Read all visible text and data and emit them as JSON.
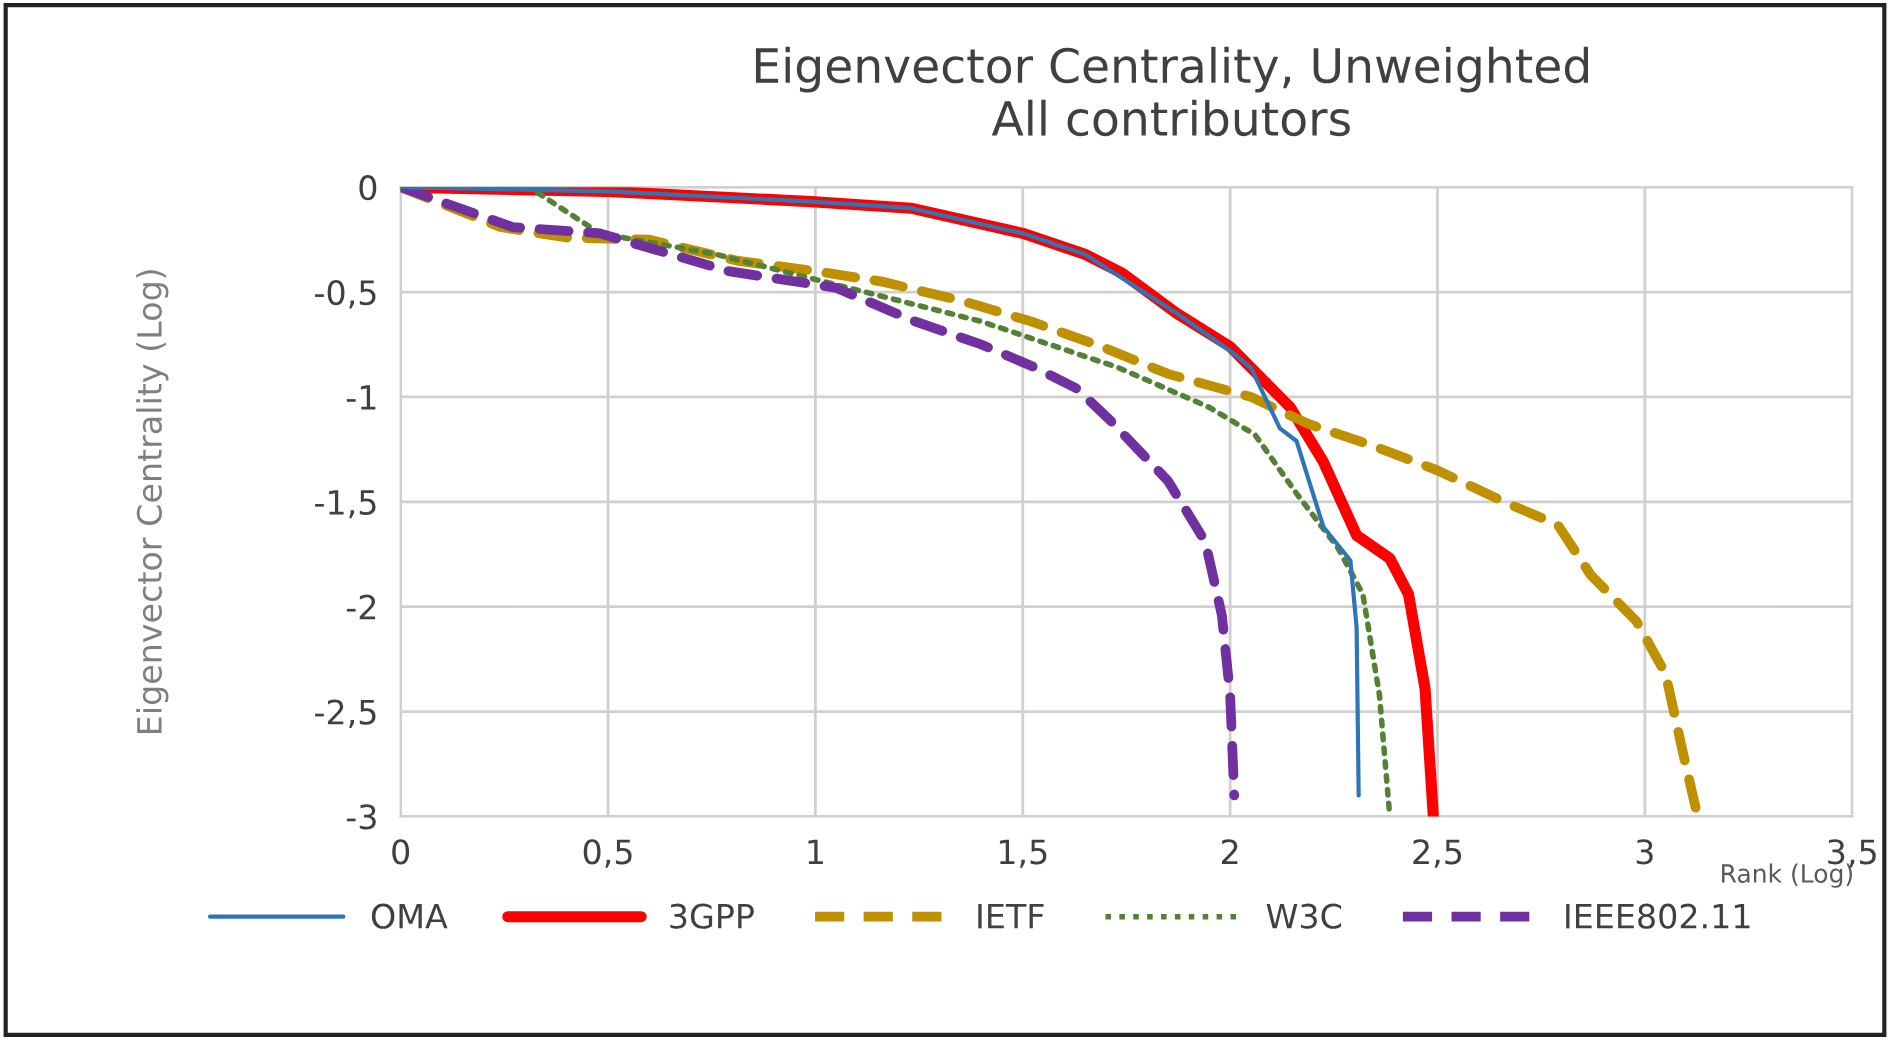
{
  "chart_data": {
    "type": "line",
    "title": "Eigenvector Centrality, Unweighted\nAll contributors",
    "xlabel": "Rank (Log)",
    "ylabel": "Eigenvector Centrality (Log)",
    "series": [
      {
        "name": "OMA",
        "color": "#2e75b6",
        "line_style": "solid",
        "x": [
          0,
          0.5,
          1,
          1.23,
          1.5,
          1.65,
          1.8,
          1.87,
          2.0,
          2.05,
          2.12,
          2.16,
          2.225,
          2.29,
          2.305,
          2.31
        ],
        "values": [
          0,
          -0.02,
          -0.07,
          -0.1,
          -0.22,
          -0.32,
          -0.51,
          -0.6,
          -0.78,
          -0.86,
          -1.15,
          -1.21,
          -1.62,
          -1.78,
          -2.1,
          -2.9
        ]
      },
      {
        "name": "3GPP",
        "color": "#ff0000",
        "line_style": "solid",
        "x": [
          0,
          0.5,
          1,
          1.23,
          1.5,
          1.65,
          1.74,
          1.87,
          2.0,
          2.145,
          2.225,
          2.305,
          2.385,
          2.43,
          2.47,
          2.49
        ],
        "values": [
          0,
          -0.02,
          -0.07,
          -0.1,
          -0.22,
          -0.32,
          -0.41,
          -0.6,
          -0.76,
          -1.05,
          -1.31,
          -1.66,
          -1.77,
          -1.94,
          -2.39,
          -3.0
        ]
      },
      {
        "name": "IETF",
        "color": "#bf9000",
        "line_style": "dashed",
        "x": [
          0,
          0.24,
          0.4,
          0.6,
          0.81,
          1.0,
          1.16,
          1.35,
          1.52,
          1.69,
          1.85,
          2.05,
          2.19,
          2.34,
          2.5,
          2.66,
          2.79,
          2.87,
          2.98,
          3.05,
          3.09,
          3.125
        ],
        "values": [
          0,
          -0.19,
          -0.24,
          -0.25,
          -0.35,
          -0.4,
          -0.45,
          -0.54,
          -0.64,
          -0.76,
          -0.89,
          -1.0,
          -1.13,
          -1.23,
          -1.35,
          -1.5,
          -1.61,
          -1.85,
          -2.07,
          -2.32,
          -2.68,
          -2.98
        ]
      },
      {
        "name": "W3C",
        "color": "#548235",
        "line_style": "dotted",
        "x": [
          0,
          0.31,
          0.48,
          0.76,
          1.08,
          1.4,
          1.73,
          1.95,
          2.06,
          2.16,
          2.26,
          2.32,
          2.36,
          2.385
        ],
        "values": [
          0,
          0,
          -0.22,
          -0.32,
          -0.48,
          -0.64,
          -0.86,
          -1.05,
          -1.18,
          -1.46,
          -1.72,
          -1.94,
          -2.42,
          -3.0
        ]
      },
      {
        "name": "IEEE802.11",
        "color": "#7030a0",
        "line_style": "dashed",
        "x": [
          0,
          0.27,
          0.48,
          0.79,
          1.05,
          1.24,
          1.4,
          1.53,
          1.63,
          1.71,
          1.85,
          1.94,
          1.98,
          2.0,
          2.01
        ],
        "values": [
          0,
          -0.19,
          -0.22,
          -0.4,
          -0.48,
          -0.64,
          -0.75,
          -0.86,
          -0.96,
          -1.11,
          -1.4,
          -1.69,
          -2.04,
          -2.42,
          -2.9
        ]
      }
    ],
    "xlim": [
      0,
      3.5
    ],
    "ylim": [
      -3,
      0
    ],
    "xticks": [
      0,
      {
        "value": 0.5,
        "label": "0,5"
      },
      1,
      {
        "value": 1.5,
        "label": "1,5"
      },
      2,
      {
        "value": 2.5,
        "label": "2,5"
      },
      3,
      {
        "value": 3.5,
        "label": "3,5"
      }
    ],
    "yticks": [
      0,
      {
        "value": -0.5,
        "label": "-0,5"
      },
      -1,
      {
        "value": -1.5,
        "label": "-1,5"
      },
      -2,
      {
        "value": -2.5,
        "label": "-2,5"
      },
      -3
    ],
    "grid": true,
    "legend": "bottom",
    "marker": "none"
  }
}
